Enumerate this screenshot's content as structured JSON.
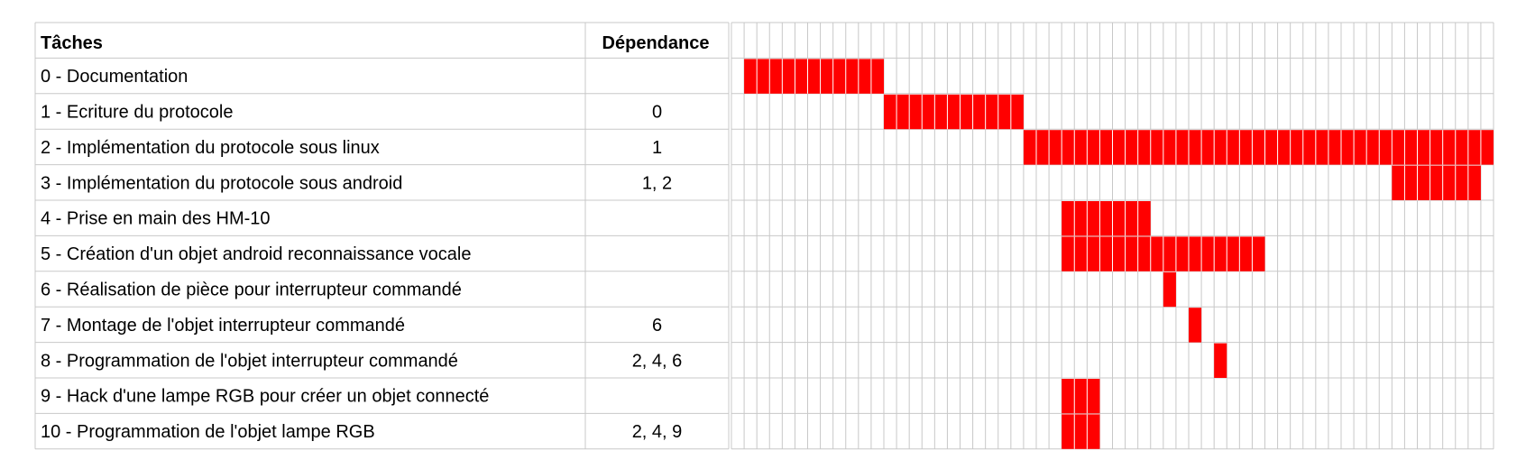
{
  "chart_data": {
    "type": "gantt",
    "headers": {
      "task": "Tâches",
      "dependency": "Dépendance"
    },
    "bar_color": "#ff0000",
    "grid_color": "#c8c8c8",
    "timeline_units": 60,
    "tasks": [
      {
        "label": "0 - Documentation",
        "dependency": "",
        "start": 1,
        "duration": 11
      },
      {
        "label": "1 - Ecriture du protocole",
        "dependency": "0",
        "start": 12,
        "duration": 11
      },
      {
        "label": "2 - Implémentation du protocole sous linux",
        "dependency": "1",
        "start": 23,
        "duration": 37
      },
      {
        "label": "3 - Implémentation du protocole sous android",
        "dependency": "1, 2",
        "start": 52,
        "duration": 7
      },
      {
        "label": "4 - Prise en main des HM-10",
        "dependency": "",
        "start": 26,
        "duration": 7
      },
      {
        "label": "5 - Création d'un objet android reconnaissance vocale",
        "dependency": "",
        "start": 26,
        "duration": 16
      },
      {
        "label": "6 - Réalisation de pièce pour interrupteur commandé",
        "dependency": "",
        "start": 34,
        "duration": 1
      },
      {
        "label": "7 - Montage de l'objet interrupteur commandé",
        "dependency": "6",
        "start": 36,
        "duration": 1
      },
      {
        "label": "8 - Programmation de l'objet interrupteur commandé",
        "dependency": "2, 4, 6",
        "start": 38,
        "duration": 1
      },
      {
        "label": "9 - Hack d'une lampe RGB pour créer un objet connecté",
        "dependency": "",
        "start": 26,
        "duration": 3
      },
      {
        "label": "10 - Programmation de l'objet lampe RGB",
        "dependency": "2, 4, 9",
        "start": 26,
        "duration": 3
      }
    ]
  }
}
